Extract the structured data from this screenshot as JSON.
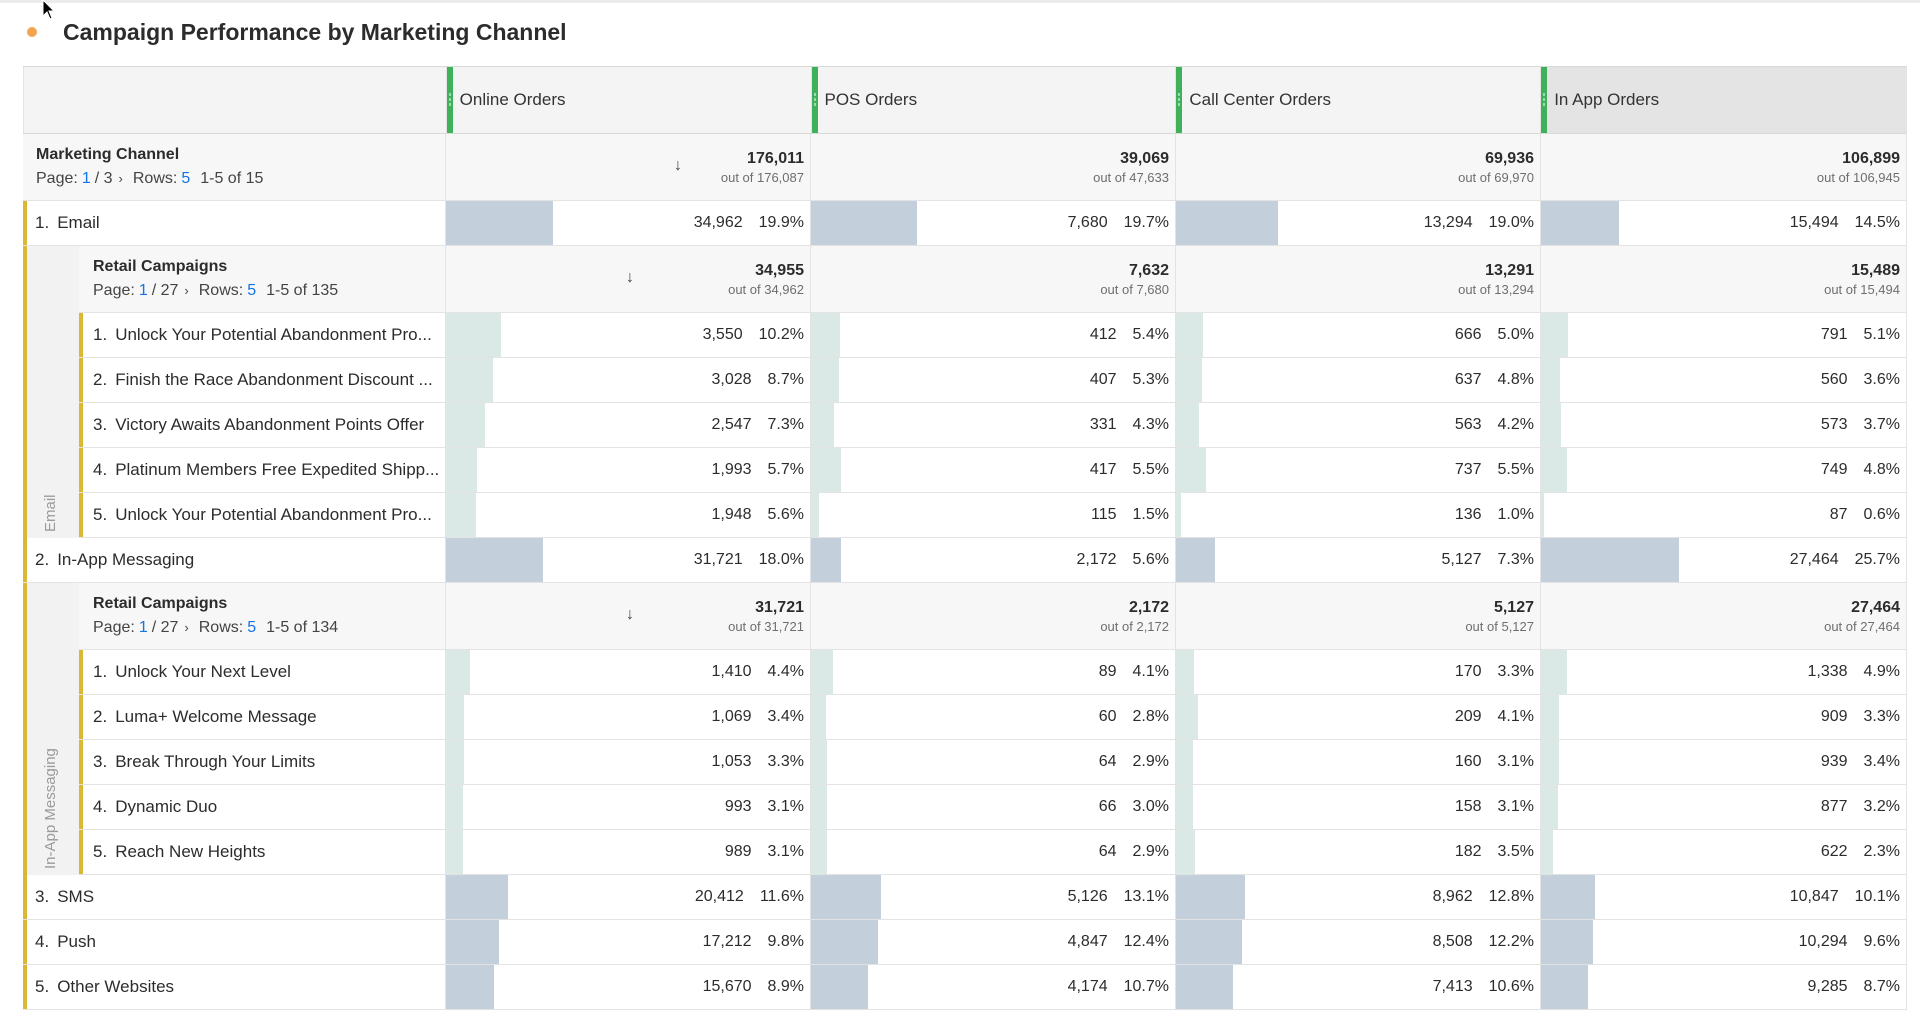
{
  "title": "Campaign Performance by Marketing Channel",
  "colors": {
    "accent_dot": "#f2a34e",
    "column_grip": "#3fb15a",
    "row_marker": "#d9b835",
    "top_bar": "#c3d0dc",
    "sub_bar": "#dbe9e6",
    "link": "#1473e6"
  },
  "columns": [
    "Online Orders",
    "POS Orders",
    "Call Center Orders",
    "In App Orders"
  ],
  "column_max": [
    176011,
    39069,
    69936,
    106899
  ],
  "summary": {
    "dimension": "Marketing Channel",
    "page_label": "Page:",
    "page": "1",
    "page_total": "/ 3",
    "chevron": "›",
    "rows_label": "Rows:",
    "rows": "5",
    "range": "1-5 of 15",
    "sort_icon": "↓",
    "totals": [
      {
        "value": "176,011",
        "out_of": "out of 176,087"
      },
      {
        "value": "39,069",
        "out_of": "out of 47,633"
      },
      {
        "value": "69,936",
        "out_of": "out of 69,970"
      },
      {
        "value": "106,899",
        "out_of": "out of 106,945"
      }
    ]
  },
  "rows": [
    {
      "index": "1.",
      "label": "Email",
      "cells": [
        {
          "value": "34,962",
          "pct": "19.9%",
          "frac": 0.199
        },
        {
          "value": "7,680",
          "pct": "19.7%",
          "frac": 0.197
        },
        {
          "value": "13,294",
          "pct": "19.0%",
          "frac": 0.19
        },
        {
          "value": "15,494",
          "pct": "14.5%",
          "frac": 0.145
        }
      ],
      "breakdown": {
        "rail_label": "Email",
        "dimension": "Retail Campaigns",
        "page_label": "Page:",
        "page": "1",
        "page_total": "/ 27",
        "chevron": "›",
        "rows_label": "Rows:",
        "rows": "5",
        "range": "1-5 of 135",
        "sort_icon": "↓",
        "totals": [
          {
            "value": "34,955",
            "out_of": "out of 34,962"
          },
          {
            "value": "7,632",
            "out_of": "out of 7,680"
          },
          {
            "value": "13,291",
            "out_of": "out of 13,294"
          },
          {
            "value": "15,489",
            "out_of": "out of 15,494"
          }
        ],
        "items": [
          {
            "index": "1.",
            "label": "Unlock Your Potential Abandonment Pro...",
            "cells": [
              {
                "value": "3,550",
                "pct": "10.2%",
                "frac": 0.102
              },
              {
                "value": "412",
                "pct": "5.4%",
                "frac": 0.054
              },
              {
                "value": "666",
                "pct": "5.0%",
                "frac": 0.05
              },
              {
                "value": "791",
                "pct": "5.1%",
                "frac": 0.051
              }
            ]
          },
          {
            "index": "2.",
            "label": "Finish the Race Abandonment Discount ...",
            "cells": [
              {
                "value": "3,028",
                "pct": "8.7%",
                "frac": 0.087
              },
              {
                "value": "407",
                "pct": "5.3%",
                "frac": 0.053
              },
              {
                "value": "637",
                "pct": "4.8%",
                "frac": 0.048
              },
              {
                "value": "560",
                "pct": "3.6%",
                "frac": 0.036
              }
            ]
          },
          {
            "index": "3.",
            "label": "Victory Awaits Abandonment Points Offer",
            "cells": [
              {
                "value": "2,547",
                "pct": "7.3%",
                "frac": 0.073
              },
              {
                "value": "331",
                "pct": "4.3%",
                "frac": 0.043
              },
              {
                "value": "563",
                "pct": "4.2%",
                "frac": 0.042
              },
              {
                "value": "573",
                "pct": "3.7%",
                "frac": 0.037
              }
            ]
          },
          {
            "index": "4.",
            "label": "Platinum Members Free Expedited Shipp...",
            "cells": [
              {
                "value": "1,993",
                "pct": "5.7%",
                "frac": 0.057
              },
              {
                "value": "417",
                "pct": "5.5%",
                "frac": 0.055
              },
              {
                "value": "737",
                "pct": "5.5%",
                "frac": 0.055
              },
              {
                "value": "749",
                "pct": "4.8%",
                "frac": 0.048
              }
            ]
          },
          {
            "index": "5.",
            "label": "Unlock Your Potential Abandonment Pro...",
            "cells": [
              {
                "value": "1,948",
                "pct": "5.6%",
                "frac": 0.056
              },
              {
                "value": "115",
                "pct": "1.5%",
                "frac": 0.015
              },
              {
                "value": "136",
                "pct": "1.0%",
                "frac": 0.01
              },
              {
                "value": "87",
                "pct": "0.6%",
                "frac": 0.006
              }
            ]
          }
        ]
      }
    },
    {
      "index": "2.",
      "label": "In-App Messaging",
      "cells": [
        {
          "value": "31,721",
          "pct": "18.0%",
          "frac": 0.18
        },
        {
          "value": "2,172",
          "pct": "5.6%",
          "frac": 0.056
        },
        {
          "value": "5,127",
          "pct": "7.3%",
          "frac": 0.073
        },
        {
          "value": "27,464",
          "pct": "25.7%",
          "frac": 0.257
        }
      ],
      "breakdown": {
        "rail_label": "In-App Messaging",
        "dimension": "Retail Campaigns",
        "page_label": "Page:",
        "page": "1",
        "page_total": "/ 27",
        "chevron": "›",
        "rows_label": "Rows:",
        "rows": "5",
        "range": "1-5 of 134",
        "sort_icon": "↓",
        "totals": [
          {
            "value": "31,721",
            "out_of": "out of 31,721"
          },
          {
            "value": "2,172",
            "out_of": "out of 2,172"
          },
          {
            "value": "5,127",
            "out_of": "out of 5,127"
          },
          {
            "value": "27,464",
            "out_of": "out of 27,464"
          }
        ],
        "items": [
          {
            "index": "1.",
            "label": "Unlock Your Next Level",
            "cells": [
              {
                "value": "1,410",
                "pct": "4.4%",
                "frac": 0.044
              },
              {
                "value": "89",
                "pct": "4.1%",
                "frac": 0.041
              },
              {
                "value": "170",
                "pct": "3.3%",
                "frac": 0.033
              },
              {
                "value": "1,338",
                "pct": "4.9%",
                "frac": 0.049
              }
            ]
          },
          {
            "index": "2.",
            "label": "Luma+ Welcome Message",
            "cells": [
              {
                "value": "1,069",
                "pct": "3.4%",
                "frac": 0.034
              },
              {
                "value": "60",
                "pct": "2.8%",
                "frac": 0.028
              },
              {
                "value": "209",
                "pct": "4.1%",
                "frac": 0.041
              },
              {
                "value": "909",
                "pct": "3.3%",
                "frac": 0.033
              }
            ]
          },
          {
            "index": "3.",
            "label": "Break Through Your Limits",
            "cells": [
              {
                "value": "1,053",
                "pct": "3.3%",
                "frac": 0.033
              },
              {
                "value": "64",
                "pct": "2.9%",
                "frac": 0.029
              },
              {
                "value": "160",
                "pct": "3.1%",
                "frac": 0.031
              },
              {
                "value": "939",
                "pct": "3.4%",
                "frac": 0.034
              }
            ]
          },
          {
            "index": "4.",
            "label": "Dynamic Duo",
            "cells": [
              {
                "value": "993",
                "pct": "3.1%",
                "frac": 0.031
              },
              {
                "value": "66",
                "pct": "3.0%",
                "frac": 0.03
              },
              {
                "value": "158",
                "pct": "3.1%",
                "frac": 0.031
              },
              {
                "value": "877",
                "pct": "3.2%",
                "frac": 0.032
              }
            ]
          },
          {
            "index": "5.",
            "label": "Reach New Heights",
            "cells": [
              {
                "value": "989",
                "pct": "3.1%",
                "frac": 0.031
              },
              {
                "value": "64",
                "pct": "2.9%",
                "frac": 0.029
              },
              {
                "value": "182",
                "pct": "3.5%",
                "frac": 0.035
              },
              {
                "value": "622",
                "pct": "2.3%",
                "frac": 0.023
              }
            ]
          }
        ]
      }
    },
    {
      "index": "3.",
      "label": "SMS",
      "cells": [
        {
          "value": "20,412",
          "pct": "11.6%",
          "frac": 0.116
        },
        {
          "value": "5,126",
          "pct": "13.1%",
          "frac": 0.131
        },
        {
          "value": "8,962",
          "pct": "12.8%",
          "frac": 0.128
        },
        {
          "value": "10,847",
          "pct": "10.1%",
          "frac": 0.101
        }
      ]
    },
    {
      "index": "4.",
      "label": "Push",
      "cells": [
        {
          "value": "17,212",
          "pct": "9.8%",
          "frac": 0.098
        },
        {
          "value": "4,847",
          "pct": "12.4%",
          "frac": 0.124
        },
        {
          "value": "8,508",
          "pct": "12.2%",
          "frac": 0.122
        },
        {
          "value": "10,294",
          "pct": "9.6%",
          "frac": 0.096
        }
      ]
    },
    {
      "index": "5.",
      "label": "Other Websites",
      "cells": [
        {
          "value": "15,670",
          "pct": "8.9%",
          "frac": 0.089
        },
        {
          "value": "4,174",
          "pct": "10.7%",
          "frac": 0.107
        },
        {
          "value": "7,413",
          "pct": "10.6%",
          "frac": 0.106
        },
        {
          "value": "9,285",
          "pct": "8.7%",
          "frac": 0.087
        }
      ]
    }
  ]
}
